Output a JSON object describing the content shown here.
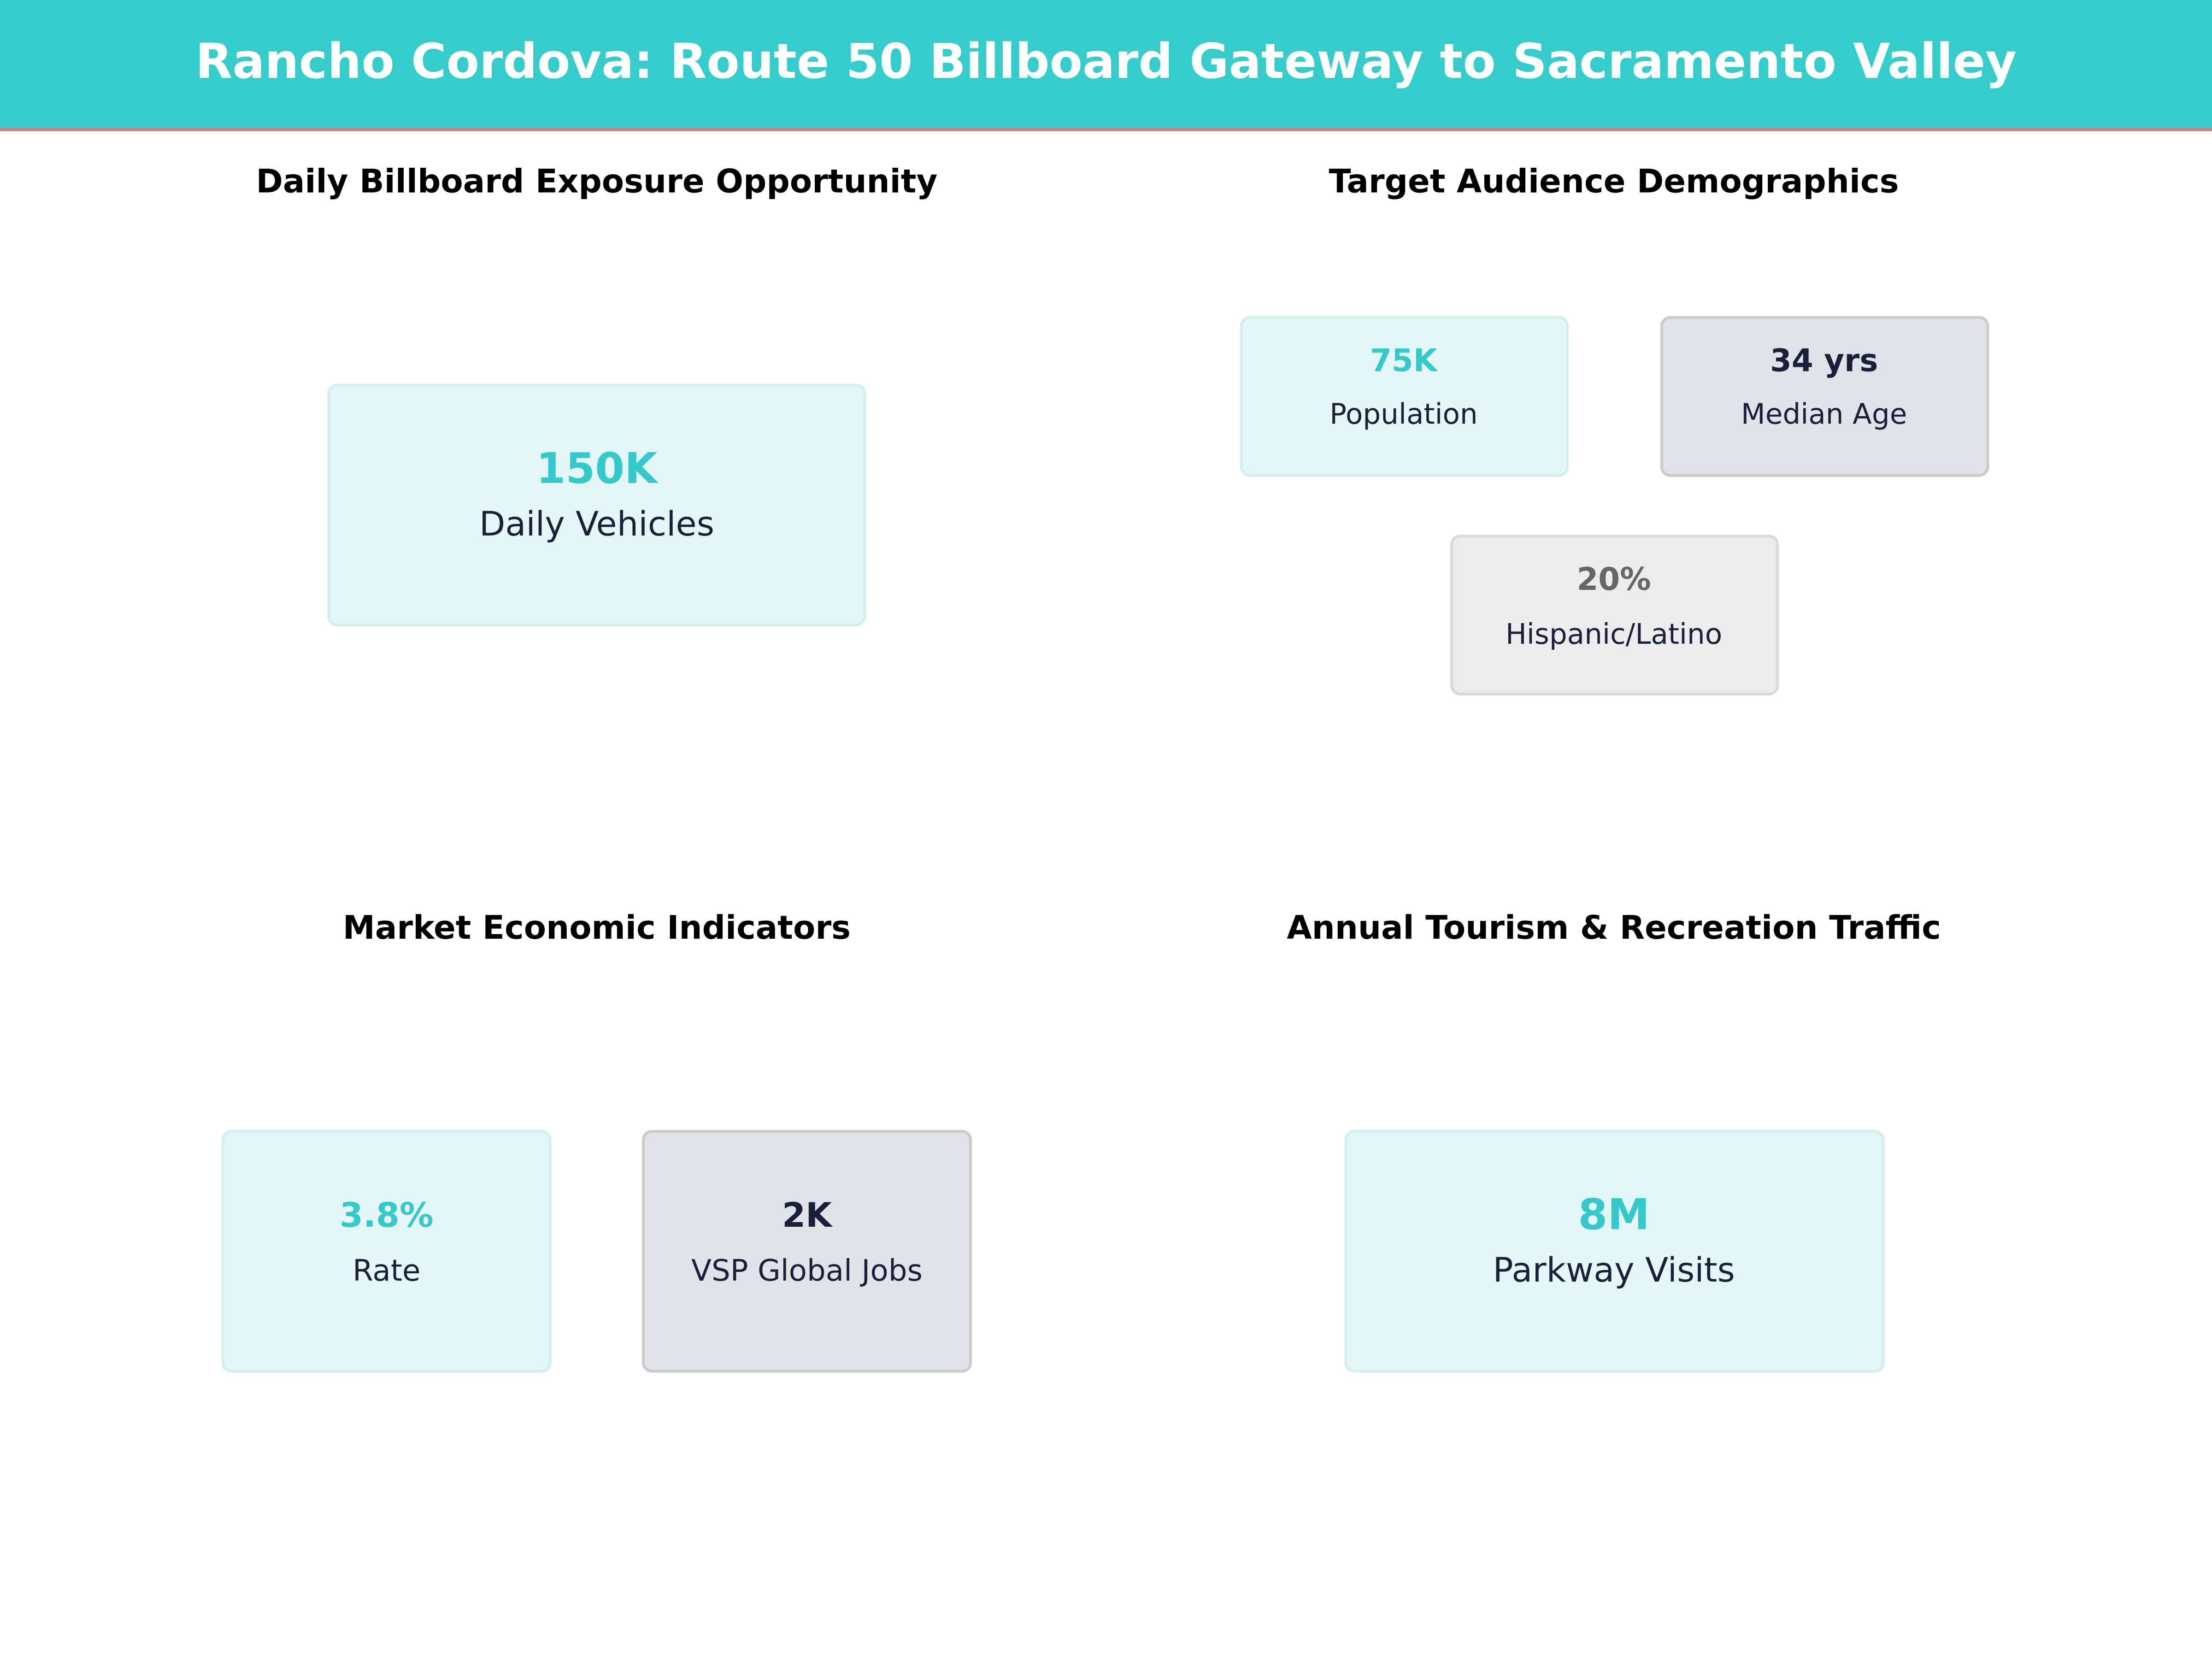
{
  "header": {
    "title": "Rancho Cordova: Route 50 Billboard Gateway to Sacramento Valley"
  },
  "panels": [
    {
      "title": "Daily Billboard Exposure Opportunity",
      "cards": [
        {
          "value": "150K",
          "label": "Daily Vehicles"
        }
      ]
    },
    {
      "title": "Target Audience Demographics",
      "cards": [
        {
          "value": "75K",
          "label": "Population"
        },
        {
          "value": "34 yrs",
          "label": "Median Age"
        },
        {
          "value": "20%",
          "label": "Hispanic/Latino"
        }
      ]
    },
    {
      "title": "Market Economic Indicators",
      "cards": [
        {
          "value": "3.8%",
          "label": "Rate"
        },
        {
          "value": "2K",
          "label": "VSP Global Jobs"
        }
      ]
    },
    {
      "title": "Annual Tourism & Recreation Traffic",
      "cards": [
        {
          "value": "8M",
          "label": "Parkway Visits"
        }
      ]
    }
  ]
}
